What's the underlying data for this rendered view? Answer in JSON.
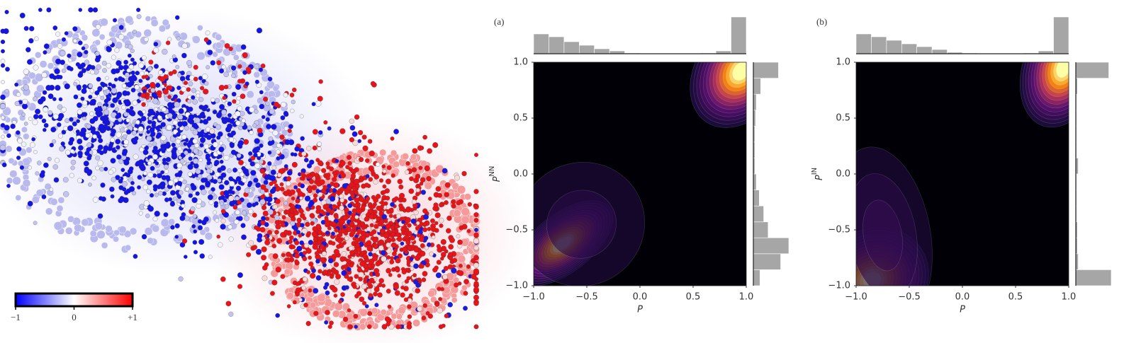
{
  "network": {
    "colorbar": {
      "lim": [
        -1,
        1
      ],
      "ticks": [
        {
          "value": -1,
          "label": "−1"
        },
        0,
        {
          "value": 1,
          "label": "+1"
        }
      ],
      "colors": [
        "#0000ff",
        "#ffffff",
        "#ff0000"
      ]
    }
  },
  "chart_data": [
    {
      "type": "joint",
      "panel_label": "(a)",
      "xlabel": "P",
      "ylabel": "P",
      "ylabel_sup": "NN",
      "xlim": [
        -1,
        1
      ],
      "ylim": [
        -1,
        1
      ],
      "xticks": [
        {
          "value": -1,
          "label": "−1.0"
        },
        {
          "value": -0.5,
          "label": "−0.5"
        },
        {
          "value": 0,
          "label": "0.0"
        },
        0.5,
        {
          "value": 1,
          "label": "1.0"
        }
      ],
      "yticks": [
        {
          "value": -1,
          "label": "−1.0"
        },
        {
          "value": -0.5,
          "label": "−0.5"
        },
        {
          "value": 0,
          "label": "0.0"
        },
        0.5,
        {
          "value": 1,
          "label": "1.0"
        }
      ],
      "hist_color": "#a6a6a6",
      "x_hist": {
        "bins": [
          -1,
          -0.857,
          -0.714,
          -0.571,
          -0.429,
          -0.286,
          -0.143,
          0,
          0.143,
          0.286,
          0.429,
          0.571,
          0.714,
          0.857,
          1
        ],
        "counts": [
          28,
          24,
          17,
          12,
          7,
          4,
          1,
          0,
          0,
          0,
          0,
          1,
          4,
          52
        ]
      },
      "y_hist": {
        "bins": [
          -1,
          -0.857,
          -0.714,
          -0.571,
          -0.429,
          -0.286,
          -0.143,
          0,
          0.143,
          0.286,
          0.429,
          0.571,
          0.714,
          0.857,
          1
        ],
        "counts": [
          9,
          37,
          48,
          20,
          14,
          8,
          4,
          2,
          2,
          2,
          3,
          4,
          10,
          34
        ]
      }
    },
    {
      "type": "joint",
      "panel_label": "(b)",
      "xlabel": "P",
      "ylabel": "P",
      "ylabel_sup": "IN",
      "xlim": [
        -1,
        1
      ],
      "ylim": [
        -1,
        1
      ],
      "xticks": [
        {
          "value": -1,
          "label": "−1.0"
        },
        {
          "value": -0.5,
          "label": "−0.5"
        },
        {
          "value": 0,
          "label": "0.0"
        },
        0.5,
        {
          "value": 1,
          "label": "1.0"
        }
      ],
      "yticks": [
        {
          "value": -1,
          "label": "−1.0"
        },
        {
          "value": -0.5,
          "label": "−0.5"
        },
        {
          "value": 0,
          "label": "0.0"
        },
        0.5,
        {
          "value": 1,
          "label": "1.0"
        }
      ],
      "hist_color": "#a6a6a6",
      "x_hist": {
        "bins": [
          -1,
          -0.857,
          -0.714,
          -0.571,
          -0.429,
          -0.286,
          -0.143,
          0,
          0.143,
          0.286,
          0.429,
          0.571,
          0.714,
          0.857,
          1
        ],
        "counts": [
          28,
          24,
          19,
          14,
          10,
          6,
          2,
          1,
          0,
          0,
          0,
          1,
          4,
          52
        ]
      },
      "y_hist": {
        "bins": [
          -1,
          -0.857,
          -0.714,
          -0.571,
          -0.429,
          -0.286,
          -0.143,
          0,
          0.143,
          0.286,
          0.429,
          0.571,
          0.714,
          0.857,
          1
        ],
        "counts": [
          43,
          3,
          2,
          2,
          1,
          1,
          1,
          3,
          1,
          1,
          1,
          1,
          2,
          40
        ]
      }
    }
  ]
}
